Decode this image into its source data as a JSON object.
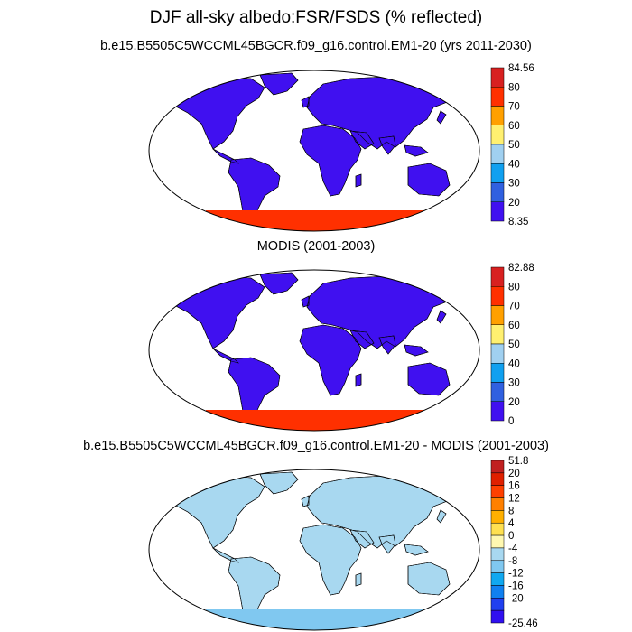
{
  "figure": {
    "title": "DJF all-sky albedo:FSR/FSDS (% reflected)"
  },
  "palettes": {
    "abs": [
      "#4010f0",
      "#3060e0",
      "#10a0f0",
      "#a0d0f0",
      "#fff070",
      "#ffa000",
      "#ff3000",
      "#d82020"
    ],
    "diff": [
      "#3010f0",
      "#2040f0",
      "#1080f0",
      "#10a8f0",
      "#80c8f0",
      "#a8d8f0",
      "#fff8b0",
      "#ffe050",
      "#ffb000",
      "#ff8000",
      "#ff4000",
      "#e02000",
      "#c02020"
    ]
  },
  "panels": [
    {
      "title": "b.e15.B5505C5WCCML45BGCR.f09_g16.control.EM1-20 (yrs 2011-2030)",
      "colorbar": {
        "max_label": "84.56",
        "min_label": "8.35",
        "levels": [
          "80",
          "70",
          "60",
          "50",
          "40",
          "30",
          "20"
        ]
      }
    },
    {
      "title": "MODIS (2001-2003)",
      "colorbar": {
        "max_label": "82.88",
        "min_label": "0",
        "levels": [
          "80",
          "70",
          "60",
          "50",
          "40",
          "30",
          "20"
        ]
      }
    },
    {
      "title": "b.e15.B5505C5WCCML45BGCR.f09_g16.control.EM1-20 - MODIS (2001-2003)",
      "colorbar": {
        "max_label": "51.8",
        "min_label": "-25.46",
        "levels": [
          "20",
          "16",
          "12",
          "8",
          "4",
          "0",
          "-4",
          "-8",
          "-12",
          "-16",
          "-20"
        ]
      }
    }
  ]
}
